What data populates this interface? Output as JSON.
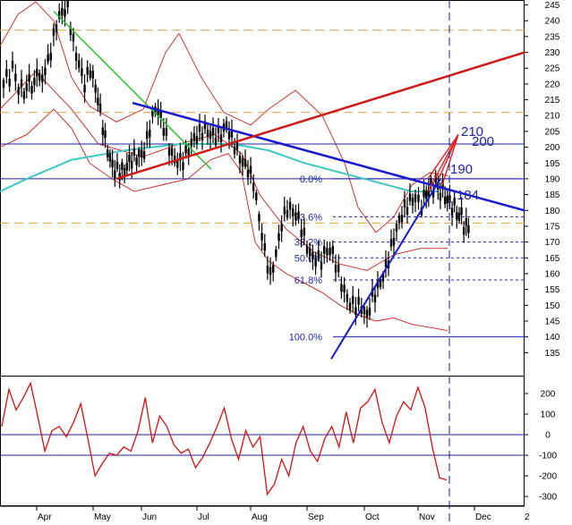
{
  "chart_data": [
    {
      "type": "candlestick",
      "x": [
        "Apr",
        "May",
        "Jun",
        "Jul",
        "Aug",
        "Sep",
        "Oct",
        "Nov",
        "Dec"
      ],
      "yticks": [
        135,
        140,
        145,
        150,
        155,
        160,
        165,
        170,
        175,
        180,
        185,
        190,
        195,
        200,
        205,
        210,
        215,
        220,
        225,
        230,
        235,
        240,
        245
      ],
      "ylim": [
        130,
        246
      ],
      "grid": false,
      "price_series": [
        {
          "month": "Apr",
          "values": [
            222,
            226,
            231,
            238,
            241,
            243,
            234,
            228,
            221,
            224
          ]
        },
        {
          "month": "May",
          "values": [
            217,
            210,
            203,
            198,
            194,
            192,
            191,
            194,
            197,
            199
          ]
        },
        {
          "month": "Jun",
          "values": [
            200,
            206,
            211,
            208,
            203,
            199,
            197,
            196,
            198,
            201
          ]
        },
        {
          "month": "Jul",
          "values": [
            204,
            207,
            206,
            204,
            203,
            205,
            202,
            200,
            197,
            194
          ]
        },
        {
          "month": "Aug",
          "values": [
            188,
            176,
            166,
            160,
            168,
            177,
            180,
            178,
            176,
            172
          ]
        },
        {
          "month": "Sep",
          "values": [
            168,
            166,
            164,
            166,
            165,
            160,
            156,
            152,
            150,
            148
          ]
        },
        {
          "month": "Oct",
          "values": [
            145,
            152,
            157,
            161,
            165,
            170,
            175,
            180,
            184,
            186
          ]
        },
        {
          "month": "Nov",
          "values": [
            182,
            186,
            188,
            186,
            183,
            180,
            176,
            172
          ]
        }
      ],
      "levels": [
        {
          "type": "resistance",
          "values": [
            237,
            211,
            201,
            176
          ]
        },
        {
          "type": "target",
          "values": [
            210,
            200,
            190,
            184
          ]
        }
      ],
      "fibonacci": [
        {
          "label": "0.0%",
          "value": 190
        },
        {
          "label": "23.6%",
          "value": 178
        },
        {
          "label": "38.2%",
          "value": 170
        },
        {
          "label": "50.0%",
          "value": 165
        },
        {
          "label": "61.8%",
          "value": 158
        },
        {
          "label": "100.0%",
          "value": 140
        }
      ],
      "annotations": [
        "210",
        "200",
        "190",
        "184"
      ]
    },
    {
      "type": "line",
      "name": "oscillator",
      "yticks": [
        -300,
        -200,
        -100,
        0,
        100,
        200
      ],
      "ylim": [
        -330,
        265
      ],
      "values": [
        40,
        220,
        120,
        180,
        250,
        90,
        -80,
        20,
        40,
        -10,
        60,
        150,
        -20,
        -200,
        -140,
        -90,
        -100,
        -60,
        -80,
        20,
        180,
        -40,
        90,
        40,
        -50,
        -90,
        -70,
        -160,
        -110,
        -40,
        40,
        130,
        -20,
        -120,
        20,
        -60,
        -10,
        -290,
        -240,
        -120,
        -200,
        -40,
        40,
        -80,
        -130,
        -20,
        40,
        -60,
        110,
        -40,
        130,
        160,
        220,
        60,
        -40,
        90,
        160,
        120,
        230,
        130,
        -60,
        -210,
        -220
      ]
    }
  ]
}
